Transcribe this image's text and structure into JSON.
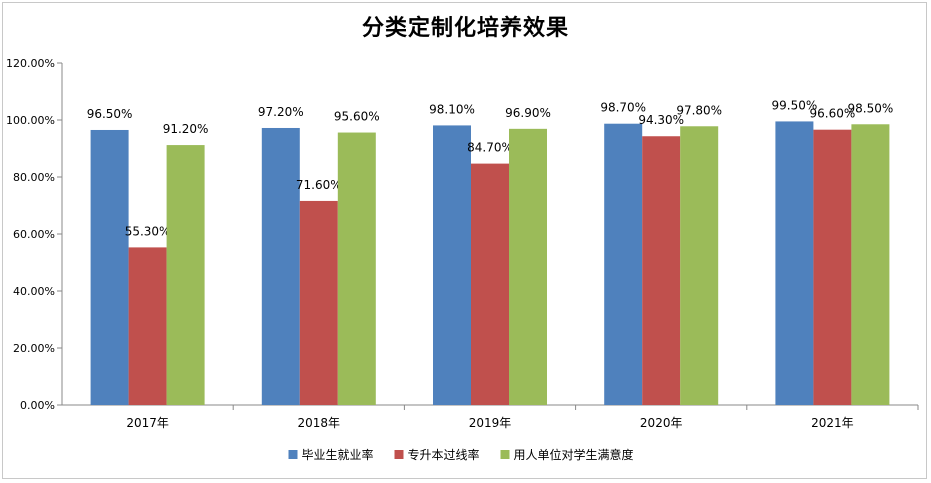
{
  "chart_data": {
    "type": "bar",
    "title": "分类定制化培养效果",
    "categories": [
      "2017年",
      "2018年",
      "2019年",
      "2020年",
      "2021年"
    ],
    "series": [
      {
        "name": "毕业生就业率",
        "color": "#4f81bd",
        "values": [
          96.5,
          97.2,
          98.1,
          98.7,
          99.5
        ],
        "labels": [
          "96.50%",
          "97.20%",
          "98.10%",
          "98.70%",
          "99.50%"
        ]
      },
      {
        "name": "专升本过线率",
        "color": "#c0504d",
        "values": [
          55.3,
          71.6,
          84.7,
          94.3,
          96.6
        ],
        "labels": [
          "55.30%",
          "71.60%",
          "84.70%",
          "94.30%",
          "96.60%"
        ]
      },
      {
        "name": "用人单位对学生满意度",
        "color": "#9bbb59",
        "values": [
          91.2,
          95.6,
          96.9,
          97.8,
          98.5
        ],
        "labels": [
          "91.20%",
          "95.60%",
          "96.90%",
          "97.80%",
          "98.50%"
        ]
      }
    ],
    "yticks": [
      "0.00%",
      "20.00%",
      "40.00%",
      "60.00%",
      "80.00%",
      "100.00%",
      "120.00%"
    ],
    "ylim": [
      0,
      120
    ],
    "legend": "bottom",
    "grid": false
  }
}
